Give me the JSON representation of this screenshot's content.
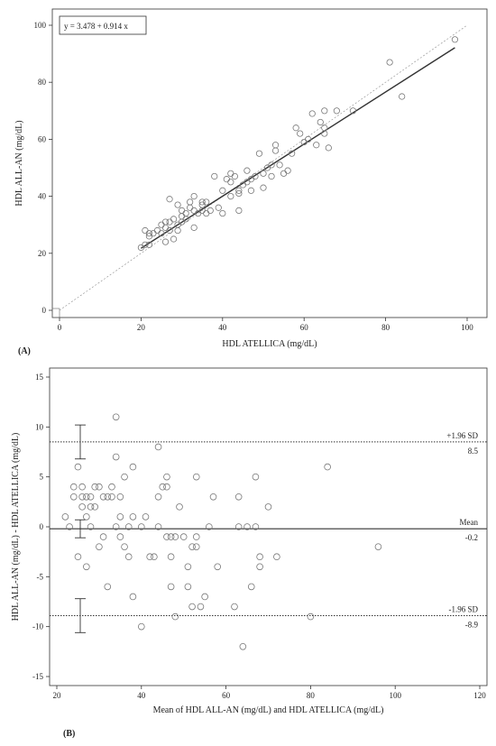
{
  "chart_data": [
    {
      "type": "scatter",
      "panel_label": "(A)",
      "xlabel": "HDL ATELLICA (mg/dL)",
      "ylabel": "HDL ALL-AN (mg/dL)",
      "xlim": [
        0,
        100
      ],
      "ylim": [
        0,
        100
      ],
      "xticks": [
        0,
        20,
        40,
        60,
        80,
        100
      ],
      "yticks": [
        0,
        20,
        40,
        60,
        80,
        100
      ],
      "regression": {
        "label": "y = 3.478 + 0.914 x",
        "intercept": 3.478,
        "slope": 0.914,
        "x_range": [
          20,
          97
        ]
      },
      "identity_line": true,
      "points": [
        [
          20,
          22
        ],
        [
          21,
          28
        ],
        [
          21,
          23
        ],
        [
          22,
          23
        ],
        [
          22,
          26
        ],
        [
          22,
          27
        ],
        [
          23,
          27
        ],
        [
          24,
          28
        ],
        [
          25,
          30
        ],
        [
          25,
          27
        ],
        [
          26,
          29
        ],
        [
          26,
          31
        ],
        [
          26,
          24
        ],
        [
          27,
          28
        ],
        [
          27,
          39
        ],
        [
          27,
          31
        ],
        [
          28,
          25
        ],
        [
          28,
          32
        ],
        [
          29,
          37
        ],
        [
          29,
          28
        ],
        [
          29,
          30
        ],
        [
          30,
          33
        ],
        [
          30,
          35
        ],
        [
          30,
          31
        ],
        [
          31,
          32
        ],
        [
          31,
          34
        ],
        [
          32,
          36
        ],
        [
          32,
          38
        ],
        [
          33,
          40
        ],
        [
          33,
          35
        ],
        [
          33,
          29
        ],
        [
          34,
          34
        ],
        [
          35,
          37
        ],
        [
          35,
          35
        ],
        [
          35,
          38
        ],
        [
          36,
          38
        ],
        [
          36,
          34
        ],
        [
          37,
          35
        ],
        [
          38,
          47
        ],
        [
          39,
          36
        ],
        [
          40,
          42
        ],
        [
          40,
          34
        ],
        [
          41,
          46
        ],
        [
          42,
          45
        ],
        [
          42,
          40
        ],
        [
          42,
          48
        ],
        [
          43,
          47
        ],
        [
          44,
          42
        ],
        [
          44,
          35
        ],
        [
          44,
          41
        ],
        [
          45,
          44
        ],
        [
          46,
          45
        ],
        [
          46,
          49
        ],
        [
          47,
          42
        ],
        [
          47,
          46
        ],
        [
          48,
          47
        ],
        [
          49,
          55
        ],
        [
          50,
          43
        ],
        [
          50,
          48
        ],
        [
          51,
          50
        ],
        [
          52,
          47
        ],
        [
          52,
          51
        ],
        [
          53,
          56
        ],
        [
          53,
          58
        ],
        [
          54,
          51
        ],
        [
          55,
          48
        ],
        [
          56,
          49
        ],
        [
          57,
          55
        ],
        [
          58,
          64
        ],
        [
          59,
          62
        ],
        [
          60,
          59
        ],
        [
          61,
          60
        ],
        [
          62,
          69
        ],
        [
          63,
          58
        ],
        [
          64,
          66
        ],
        [
          65,
          70
        ],
        [
          65,
          64
        ],
        [
          65,
          62
        ],
        [
          66,
          57
        ],
        [
          68,
          70
        ],
        [
          72,
          70
        ],
        [
          81,
          87
        ],
        [
          84,
          75
        ],
        [
          97,
          95
        ]
      ]
    },
    {
      "type": "scatter",
      "panel_label": "(B)",
      "xlabel": "Mean of HDL ALL-AN (mg/dL) and HDL ATELLICA (mg/dL)",
      "ylabel": "HDL ALL-AN (mg/dL) - HDL ATELLICA (mg/dL)",
      "xlim": [
        20,
        120
      ],
      "ylim": [
        -15,
        15
      ],
      "xticks": [
        20,
        40,
        60,
        80,
        100,
        120
      ],
      "yticks": [
        -15,
        -10,
        -5,
        0,
        5,
        10,
        15
      ],
      "reference_lines": [
        {
          "label": "+1.96 SD",
          "value_label": "8.5",
          "value": 8.5,
          "style": "dotted"
        },
        {
          "label": "Mean",
          "value_label": "-0.2",
          "value": -0.2,
          "style": "solid"
        },
        {
          "label": "-1.96 SD",
          "value_label": "-8.9",
          "value": -8.9,
          "style": "dotted"
        }
      ],
      "ci_bars": [
        {
          "center": 8.5,
          "low": 6.8,
          "high": 10.2
        },
        {
          "center": -0.2,
          "low": -1.1,
          "high": 0.7
        },
        {
          "center": -8.9,
          "low": -10.6,
          "high": -7.2
        }
      ],
      "mean_line_x_range": [
        20,
        100
      ],
      "points": [
        [
          22,
          1
        ],
        [
          23,
          0
        ],
        [
          24,
          3
        ],
        [
          24,
          4
        ],
        [
          25,
          6
        ],
        [
          25,
          -3
        ],
        [
          26,
          3
        ],
        [
          26,
          4
        ],
        [
          26,
          2
        ],
        [
          27,
          3
        ],
        [
          27,
          1
        ],
        [
          27,
          -4
        ],
        [
          28,
          3
        ],
        [
          28,
          2
        ],
        [
          28,
          0
        ],
        [
          29,
          4
        ],
        [
          29,
          2
        ],
        [
          30,
          4
        ],
        [
          30,
          -2
        ],
        [
          31,
          3
        ],
        [
          31,
          -1
        ],
        [
          32,
          3
        ],
        [
          32,
          -6
        ],
        [
          33,
          3
        ],
        [
          33,
          4
        ],
        [
          34,
          11
        ],
        [
          34,
          7
        ],
        [
          34,
          0
        ],
        [
          35,
          3
        ],
        [
          35,
          1
        ],
        [
          35,
          -1
        ],
        [
          36,
          5
        ],
        [
          36,
          -2
        ],
        [
          37,
          0
        ],
        [
          37,
          -3
        ],
        [
          38,
          6
        ],
        [
          38,
          1
        ],
        [
          38,
          -7
        ],
        [
          40,
          0
        ],
        [
          40,
          -10
        ],
        [
          41,
          1
        ],
        [
          42,
          -3
        ],
        [
          43,
          -3
        ],
        [
          44,
          8
        ],
        [
          44,
          3
        ],
        [
          44,
          0
        ],
        [
          45,
          4
        ],
        [
          46,
          4
        ],
        [
          46,
          5
        ],
        [
          46,
          -1
        ],
        [
          47,
          -1
        ],
        [
          47,
          -6
        ],
        [
          47,
          -3
        ],
        [
          48,
          -9
        ],
        [
          48,
          -1
        ],
        [
          49,
          2
        ],
        [
          50,
          -1
        ],
        [
          51,
          -6
        ],
        [
          51,
          -4
        ],
        [
          52,
          -8
        ],
        [
          52,
          -2
        ],
        [
          53,
          -2
        ],
        [
          53,
          5
        ],
        [
          53,
          -1
        ],
        [
          54,
          -8
        ],
        [
          55,
          -7
        ],
        [
          56,
          0
        ],
        [
          57,
          3
        ],
        [
          58,
          -4
        ],
        [
          62,
          -8
        ],
        [
          63,
          0
        ],
        [
          63,
          3
        ],
        [
          64,
          -12
        ],
        [
          65,
          0
        ],
        [
          66,
          -6
        ],
        [
          67,
          0
        ],
        [
          67,
          5
        ],
        [
          68,
          -3
        ],
        [
          68,
          -4
        ],
        [
          70,
          2
        ],
        [
          72,
          -3
        ],
        [
          80,
          -9
        ],
        [
          84,
          6
        ],
        [
          96,
          -2
        ]
      ]
    }
  ]
}
